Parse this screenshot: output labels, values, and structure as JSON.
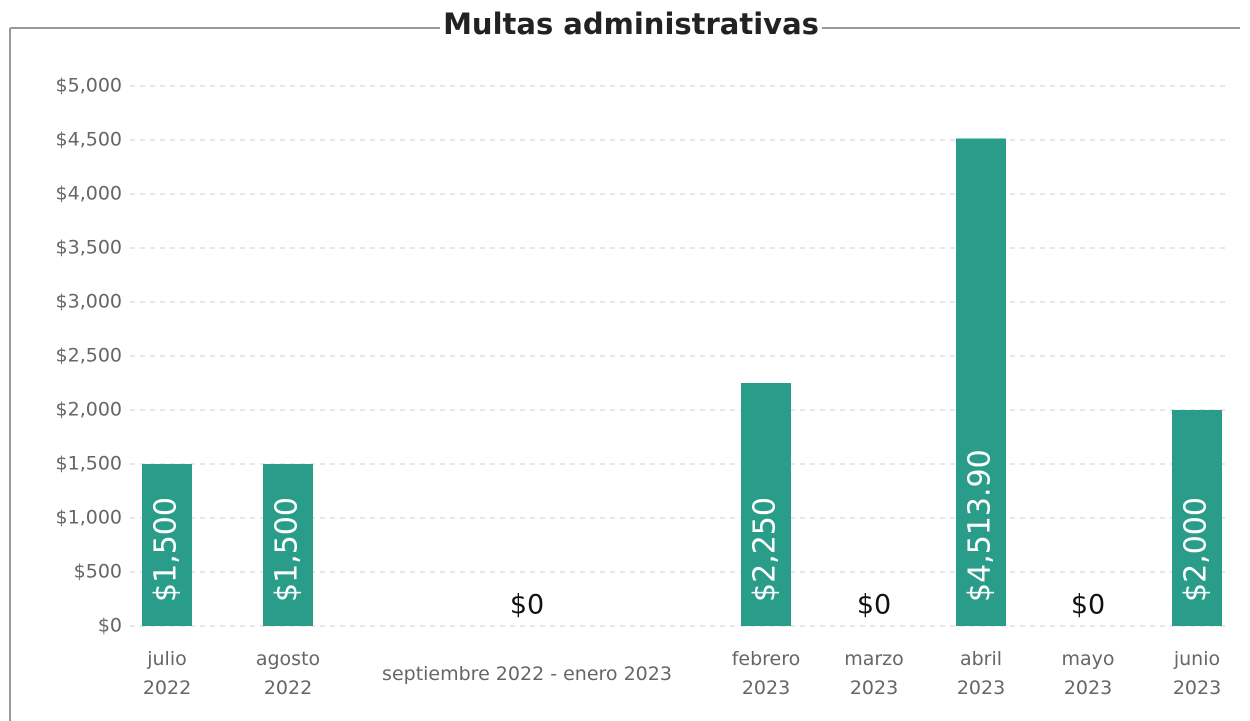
{
  "chart_data": {
    "type": "bar",
    "title": "Multas administrativas",
    "categories": [
      [
        "julio",
        "2022"
      ],
      [
        "agosto",
        "2022"
      ],
      [
        "septiembre 2022 - enero 2023"
      ],
      [
        "febrero",
        "2023"
      ],
      [
        "marzo",
        "2023"
      ],
      [
        "abril",
        "2023"
      ],
      [
        "mayo",
        "2023"
      ],
      [
        "junio",
        "2023"
      ]
    ],
    "values": [
      1500,
      1500,
      0,
      2250,
      0,
      4513.9,
      0,
      2000
    ],
    "value_labels": [
      "$1,500",
      "$1,500",
      "$0",
      "$2,250",
      "$0",
      "$4,513.90",
      "$0",
      "$2,000"
    ],
    "color": "#2a9d8a",
    "ylim": [
      0,
      5000
    ],
    "yticks": [
      {
        "value": 0,
        "label": "$0"
      },
      {
        "value": 500,
        "label": "$500"
      },
      {
        "value": 1000,
        "label": "$1,000"
      },
      {
        "value": 1500,
        "label": "$1,500"
      },
      {
        "value": 2000,
        "label": "$2,000"
      },
      {
        "value": 2500,
        "label": "$2,500"
      },
      {
        "value": 3000,
        "label": "$3,000"
      },
      {
        "value": 3500,
        "label": "$3,500"
      },
      {
        "value": 4000,
        "label": "$4,000"
      },
      {
        "value": 4500,
        "label": "$4,500"
      },
      {
        "value": 5000,
        "label": "$5,000"
      }
    ],
    "grid": true
  }
}
